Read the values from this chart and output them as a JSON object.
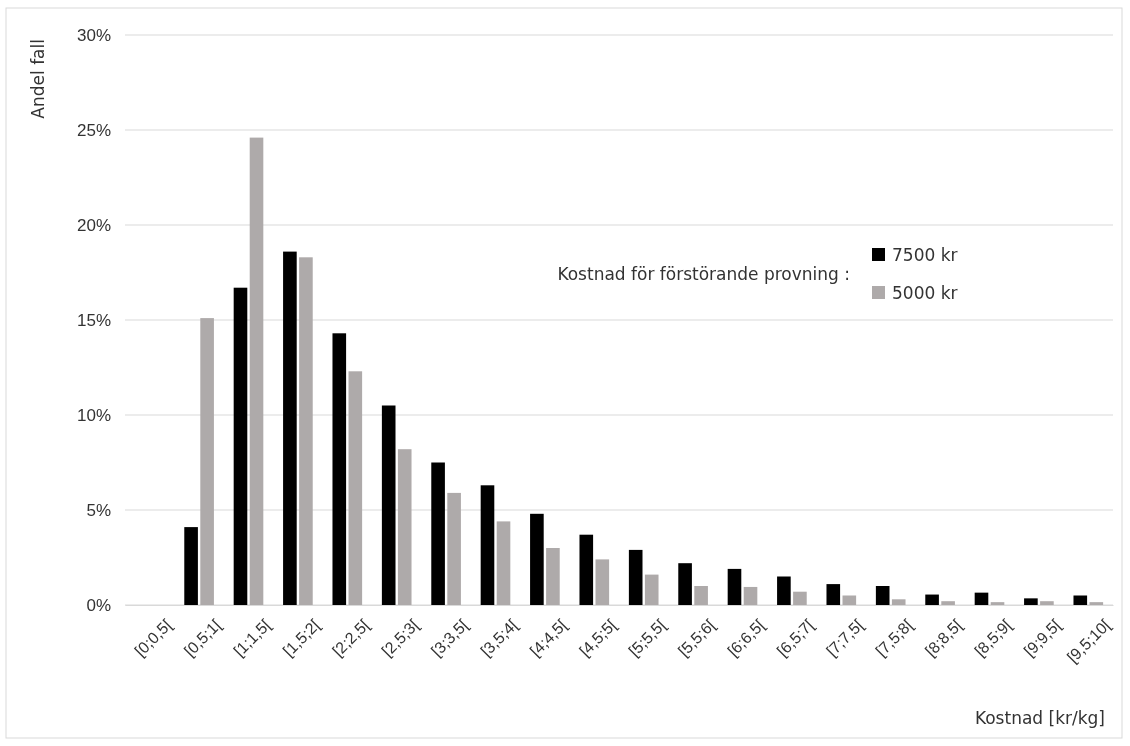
{
  "chart_data": {
    "type": "bar",
    "xlabel": "Kostnad [kr/kg]",
    "ylabel": "Andel fall",
    "legend_title": "Kostnad för förstörande provning :",
    "categories": [
      "[0;0,5[",
      "[0,5;1[",
      "[1;1,5[",
      "[1,5;2[",
      "[2;2,5[",
      "[2,5;3[",
      "[3;3,5[",
      "[3,5;4[",
      "[4;4,5[",
      "[4,5;5[",
      "[5;5,5[",
      "[5,5;6[",
      "[6;6,5[",
      "[6,5;7[",
      "[7;7,5[",
      "[7,5;8[",
      "[8;8,5[",
      "[8,5;9[",
      "[9;9,5[",
      "[9,5;10["
    ],
    "series": [
      {
        "name": "7500 kr",
        "color": "#000000",
        "values": [
          0,
          4.1,
          16.7,
          18.6,
          14.3,
          10.5,
          7.5,
          6.3,
          4.8,
          3.7,
          2.9,
          2.2,
          1.9,
          1.5,
          1.1,
          1.0,
          0.55,
          0.65,
          0.35,
          0.5
        ]
      },
      {
        "name": "5000 kr",
        "color": "#aeaaaa",
        "values": [
          0,
          15.1,
          24.6,
          18.3,
          12.3,
          8.2,
          5.9,
          4.4,
          3.0,
          2.4,
          1.6,
          1.0,
          0.95,
          0.7,
          0.5,
          0.3,
          0.2,
          0.15,
          0.2,
          0.15
        ]
      }
    ],
    "ylim": [
      0,
      30
    ],
    "yticks": [
      {
        "value": 0,
        "label": "0%"
      },
      {
        "value": 5,
        "label": "5%"
      },
      {
        "value": 10,
        "label": "10%"
      },
      {
        "value": 15,
        "label": "15%"
      },
      {
        "value": 20,
        "label": "20%"
      },
      {
        "value": 25,
        "label": "25%"
      },
      {
        "value": 30,
        "label": "30%"
      }
    ],
    "grid": "y",
    "legend": "right"
  }
}
